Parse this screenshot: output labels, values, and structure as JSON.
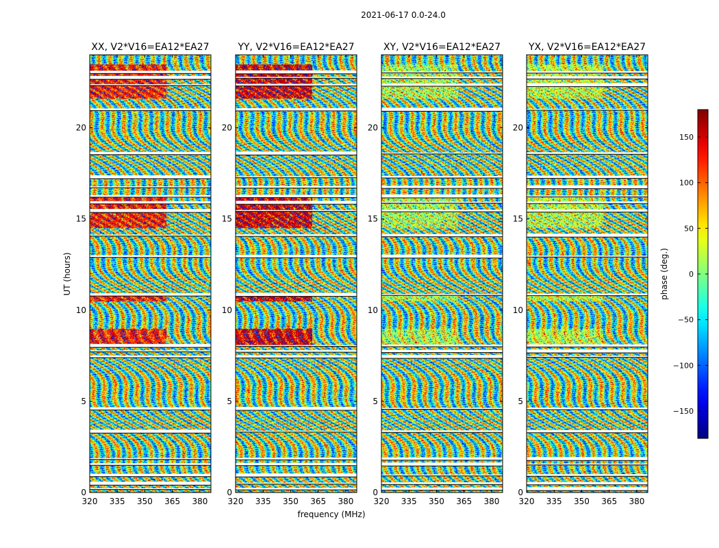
{
  "chart_data": {
    "type": "heatmap",
    "suptitle": "2021-06-17 0.0-24.0",
    "xlabel": "frequency (MHz)",
    "ylabel": "UT (hours)",
    "xlim": [
      320,
      386
    ],
    "ylim": [
      0,
      24
    ],
    "xticks": [
      320,
      335,
      350,
      365,
      380
    ],
    "yticks": [
      0,
      5,
      10,
      15,
      20
    ],
    "panels": [
      {
        "title": "XX, V2*V16=EA12*EA27",
        "pol": "XX"
      },
      {
        "title": "YY, V2*V16=EA12*EA27",
        "pol": "YY"
      },
      {
        "title": "XY, V2*V16=EA12*EA27",
        "pol": "XY"
      },
      {
        "title": "YX, V2*V16=EA12*EA27",
        "pol": "YX"
      }
    ],
    "colorbar": {
      "label": "phase (deg.)",
      "range": [
        -180,
        180
      ],
      "ticks": [
        150,
        100,
        50,
        0,
        -50,
        -100,
        -150
      ],
      "colormap": "jet"
    },
    "flagged_ut_hours": [
      0.2,
      0.5,
      0.95,
      1.55,
      1.85,
      3.35,
      4.6,
      7.45,
      7.75,
      8.05,
      10.85,
      12.95,
      14.1,
      15.45,
      15.9,
      16.25,
      16.75,
      17.3,
      18.6,
      21.0,
      22.35,
      22.75,
      23.05
    ]
  },
  "colors": {
    "background": "#ffffff",
    "axes_edge": "#000000",
    "flag": "#ffffff"
  }
}
